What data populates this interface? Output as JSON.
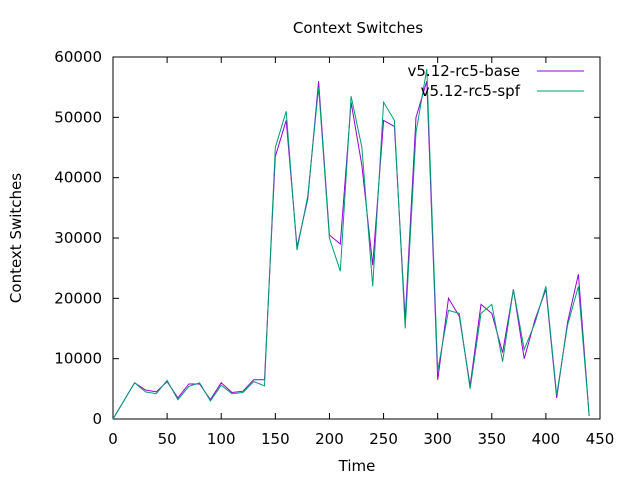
{
  "chart_data": {
    "type": "line",
    "title": "Context Switches",
    "xlabel": "Time",
    "ylabel": "Context Switches",
    "xlim": [
      0,
      450
    ],
    "ylim": [
      0,
      60000
    ],
    "x_ticks": [
      0,
      50,
      100,
      150,
      200,
      250,
      300,
      350,
      400,
      450
    ],
    "y_ticks": [
      0,
      10000,
      20000,
      30000,
      40000,
      50000,
      60000
    ],
    "grid": false,
    "legend_position": "top-right",
    "series": [
      {
        "name": "v5.12-rc5-base",
        "color": "#9400d3",
        "x": [
          0,
          10,
          20,
          30,
          40,
          50,
          60,
          70,
          80,
          90,
          100,
          110,
          120,
          130,
          140,
          150,
          160,
          170,
          180,
          190,
          200,
          210,
          220,
          230,
          240,
          250,
          260,
          270,
          280,
          290,
          300,
          310,
          320,
          330,
          340,
          350,
          360,
          370,
          380,
          390,
          400,
          410,
          420,
          430,
          440
        ],
        "y": [
          0,
          3000,
          6000,
          4800,
          4500,
          6200,
          3500,
          5800,
          5800,
          3200,
          6000,
          4400,
          4600,
          6500,
          6500,
          43500,
          49500,
          28500,
          36500,
          56000,
          30500,
          29000,
          52500,
          42000,
          25500,
          49500,
          48500,
          16500,
          50000,
          56000,
          6500,
          20000,
          17000,
          5500,
          19000,
          17500,
          11000,
          21500,
          10000,
          16500,
          21500,
          3500,
          16000,
          24000,
          500
        ]
      },
      {
        "name": "v5.12-rc5-spf",
        "color": "#009e73",
        "x": [
          0,
          10,
          20,
          30,
          40,
          50,
          60,
          70,
          80,
          90,
          100,
          110,
          120,
          130,
          140,
          150,
          160,
          170,
          180,
          190,
          200,
          210,
          220,
          230,
          240,
          250,
          260,
          270,
          280,
          290,
          300,
          310,
          320,
          330,
          340,
          350,
          360,
          370,
          380,
          390,
          400,
          410,
          420,
          430,
          440
        ],
        "y": [
          0,
          3000,
          6000,
          4500,
          4200,
          6400,
          3200,
          5400,
          6000,
          3000,
          5600,
          4200,
          4400,
          6200,
          5500,
          45000,
          51000,
          28000,
          37000,
          55000,
          30000,
          24500,
          53500,
          45000,
          22000,
          52500,
          49500,
          15000,
          47500,
          58000,
          8000,
          18000,
          17500,
          5000,
          17500,
          19000,
          9500,
          21500,
          11500,
          16000,
          22000,
          4000,
          15500,
          22000,
          500
        ]
      }
    ]
  }
}
